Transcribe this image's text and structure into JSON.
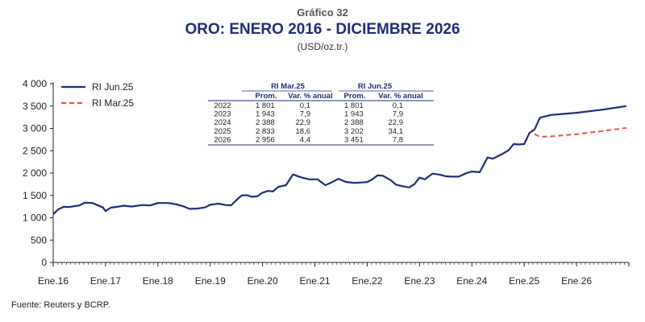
{
  "header": {
    "kicker": "Gráfico 32",
    "title": "ORO: ENERO 2016 - DICIEMBRE 2026",
    "unit": "(USD/oz.tr.)"
  },
  "footer": {
    "source": "Fuente: Reuters y BCRP."
  },
  "colors": {
    "jun": "#1f2d7a",
    "mar": "#e8504a",
    "axis": "#222222",
    "rule": "#1f2d7a"
  },
  "chart_data": {
    "type": "line",
    "title": "ORO: ENERO 2016 - DICIEMBRE 2026",
    "ylabel": "(USD/oz.tr.)",
    "ylim": [
      0,
      4000
    ],
    "yticks": [
      0,
      500,
      1000,
      1500,
      2000,
      2500,
      3000,
      3500,
      4000
    ],
    "ytick_labels": [
      "0",
      "500",
      "1 000",
      "1 500",
      "2 000",
      "2 500",
      "3 000",
      "3 500",
      "4 000"
    ],
    "xlim": [
      2016.0,
      2027.0
    ],
    "xticks": [
      2016,
      2017,
      2018,
      2019,
      2020,
      2021,
      2022,
      2023,
      2024,
      2025,
      2026
    ],
    "xtick_labels": [
      "Ene.16",
      "Ene.17",
      "Ene.18",
      "Ene.19",
      "Ene.20",
      "Ene.21",
      "Ene.22",
      "Ene.23",
      "Ene.24",
      "Ene.25",
      "Ene.26"
    ],
    "legend_position": "top-left",
    "series": [
      {
        "name": "RI Jun.25",
        "style": "solid",
        "points": [
          [
            2016.0,
            1080
          ],
          [
            2016.1,
            1190
          ],
          [
            2016.2,
            1245
          ],
          [
            2016.3,
            1240
          ],
          [
            2016.5,
            1275
          ],
          [
            2016.6,
            1335
          ],
          [
            2016.75,
            1330
          ],
          [
            2016.9,
            1255
          ],
          [
            2016.95,
            1230
          ],
          [
            2017.0,
            1150
          ],
          [
            2017.1,
            1225
          ],
          [
            2017.25,
            1250
          ],
          [
            2017.35,
            1270
          ],
          [
            2017.5,
            1250
          ],
          [
            2017.7,
            1285
          ],
          [
            2017.85,
            1275
          ],
          [
            2018.0,
            1330
          ],
          [
            2018.2,
            1330
          ],
          [
            2018.35,
            1300
          ],
          [
            2018.5,
            1250
          ],
          [
            2018.6,
            1200
          ],
          [
            2018.75,
            1205
          ],
          [
            2018.9,
            1230
          ],
          [
            2019.0,
            1290
          ],
          [
            2019.15,
            1315
          ],
          [
            2019.3,
            1285
          ],
          [
            2019.4,
            1280
          ],
          [
            2019.5,
            1395
          ],
          [
            2019.6,
            1500
          ],
          [
            2019.7,
            1505
          ],
          [
            2019.8,
            1470
          ],
          [
            2019.9,
            1480
          ],
          [
            2020.0,
            1560
          ],
          [
            2020.1,
            1600
          ],
          [
            2020.2,
            1590
          ],
          [
            2020.3,
            1690
          ],
          [
            2020.45,
            1730
          ],
          [
            2020.58,
            1970
          ],
          [
            2020.75,
            1900
          ],
          [
            2020.9,
            1860
          ],
          [
            2021.05,
            1860
          ],
          [
            2021.2,
            1730
          ],
          [
            2021.3,
            1780
          ],
          [
            2021.45,
            1870
          ],
          [
            2021.6,
            1800
          ],
          [
            2021.75,
            1780
          ],
          [
            2021.9,
            1790
          ],
          [
            2022.0,
            1800
          ],
          [
            2022.1,
            1860
          ],
          [
            2022.2,
            1950
          ],
          [
            2022.3,
            1940
          ],
          [
            2022.45,
            1840
          ],
          [
            2022.55,
            1740
          ],
          [
            2022.7,
            1700
          ],
          [
            2022.8,
            1680
          ],
          [
            2022.9,
            1750
          ],
          [
            2023.0,
            1900
          ],
          [
            2023.1,
            1860
          ],
          [
            2023.25,
            1990
          ],
          [
            2023.4,
            1960
          ],
          [
            2023.5,
            1930
          ],
          [
            2023.6,
            1920
          ],
          [
            2023.75,
            1920
          ],
          [
            2023.9,
            2000
          ],
          [
            2024.0,
            2035
          ],
          [
            2024.15,
            2020
          ],
          [
            2024.3,
            2350
          ],
          [
            2024.4,
            2320
          ],
          [
            2024.5,
            2380
          ],
          [
            2024.6,
            2440
          ],
          [
            2024.7,
            2510
          ],
          [
            2024.8,
            2650
          ],
          [
            2024.9,
            2640
          ],
          [
            2025.0,
            2650
          ],
          [
            2025.1,
            2900
          ],
          [
            2025.2,
            2980
          ],
          [
            2025.3,
            3240
          ],
          [
            2025.5,
            3300
          ],
          [
            2026.0,
            3350
          ],
          [
            2026.5,
            3420
          ],
          [
            2026.95,
            3500
          ]
        ]
      },
      {
        "name": "RI Mar.25",
        "style": "dashed",
        "points": [
          [
            2025.2,
            2870
          ],
          [
            2025.3,
            2810
          ],
          [
            2025.5,
            2820
          ],
          [
            2026.0,
            2870
          ],
          [
            2026.5,
            2940
          ],
          [
            2026.95,
            3010
          ]
        ]
      }
    ]
  },
  "table": {
    "groups": [
      "RI Mar.25",
      "RI Jun.25"
    ],
    "columns": [
      "Prom.",
      "Var. % anual",
      "Prom.",
      "Var. % anual"
    ],
    "rows": [
      [
        "2022",
        "1 801",
        "0,1",
        "1 801",
        "0,1"
      ],
      [
        "2023",
        "1 943",
        "7,9",
        "1 943",
        "7,9"
      ],
      [
        "2024",
        "2 388",
        "22,9",
        "2 388",
        "22,9"
      ],
      [
        "2025",
        "2 833",
        "18,6",
        "3 202",
        "34,1"
      ],
      [
        "2026",
        "2 956",
        "4,4",
        "3 451",
        "7,8"
      ]
    ]
  }
}
